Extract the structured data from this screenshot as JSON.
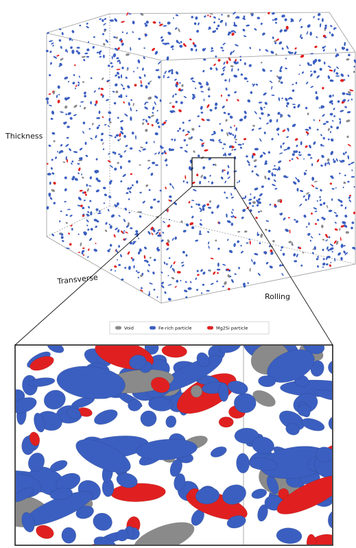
{
  "axis_labels": {
    "thickness": "Thickness",
    "transverse": "Transverse",
    "rolling": "Rolling"
  },
  "legend": [
    {
      "label": "Void",
      "color": "#8a8a8a"
    },
    {
      "label": "Fe-rich particle",
      "color": "#3b5fc0"
    },
    {
      "label": "Mg2Si particle",
      "color": "#e02020"
    }
  ]
}
